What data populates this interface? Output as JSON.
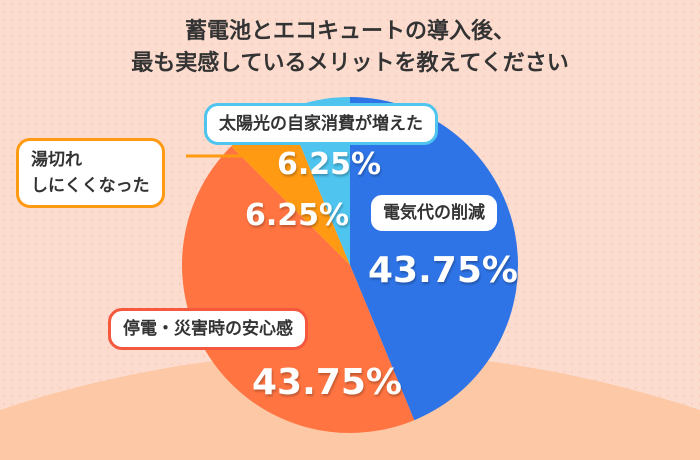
{
  "title_lines": [
    "蓄電池とエコキュートの導入後、",
    "最も実感しているメリットを教えてください"
  ],
  "chart_data": {
    "type": "pie",
    "title": "蓄電池とエコキュートの導入後、最も実感しているメリットを教えてください",
    "slices": [
      {
        "label": "電気代の削減",
        "value": 43.75,
        "display": "43.75%",
        "color": "#2f74e6"
      },
      {
        "label": "停電・災害時の安心感",
        "value": 43.75,
        "display": "43.75%",
        "color": "#ff7441"
      },
      {
        "label": "湯切れしにくくなった",
        "label_lines": [
          "湯切れ",
          "しにくくなった"
        ],
        "value": 6.25,
        "display": "6.25%",
        "color": "#ff9a12"
      },
      {
        "label": "太陽光の自家消費が増えた",
        "value": 6.25,
        "display": "6.25%",
        "color": "#4ec4ef"
      }
    ]
  }
}
